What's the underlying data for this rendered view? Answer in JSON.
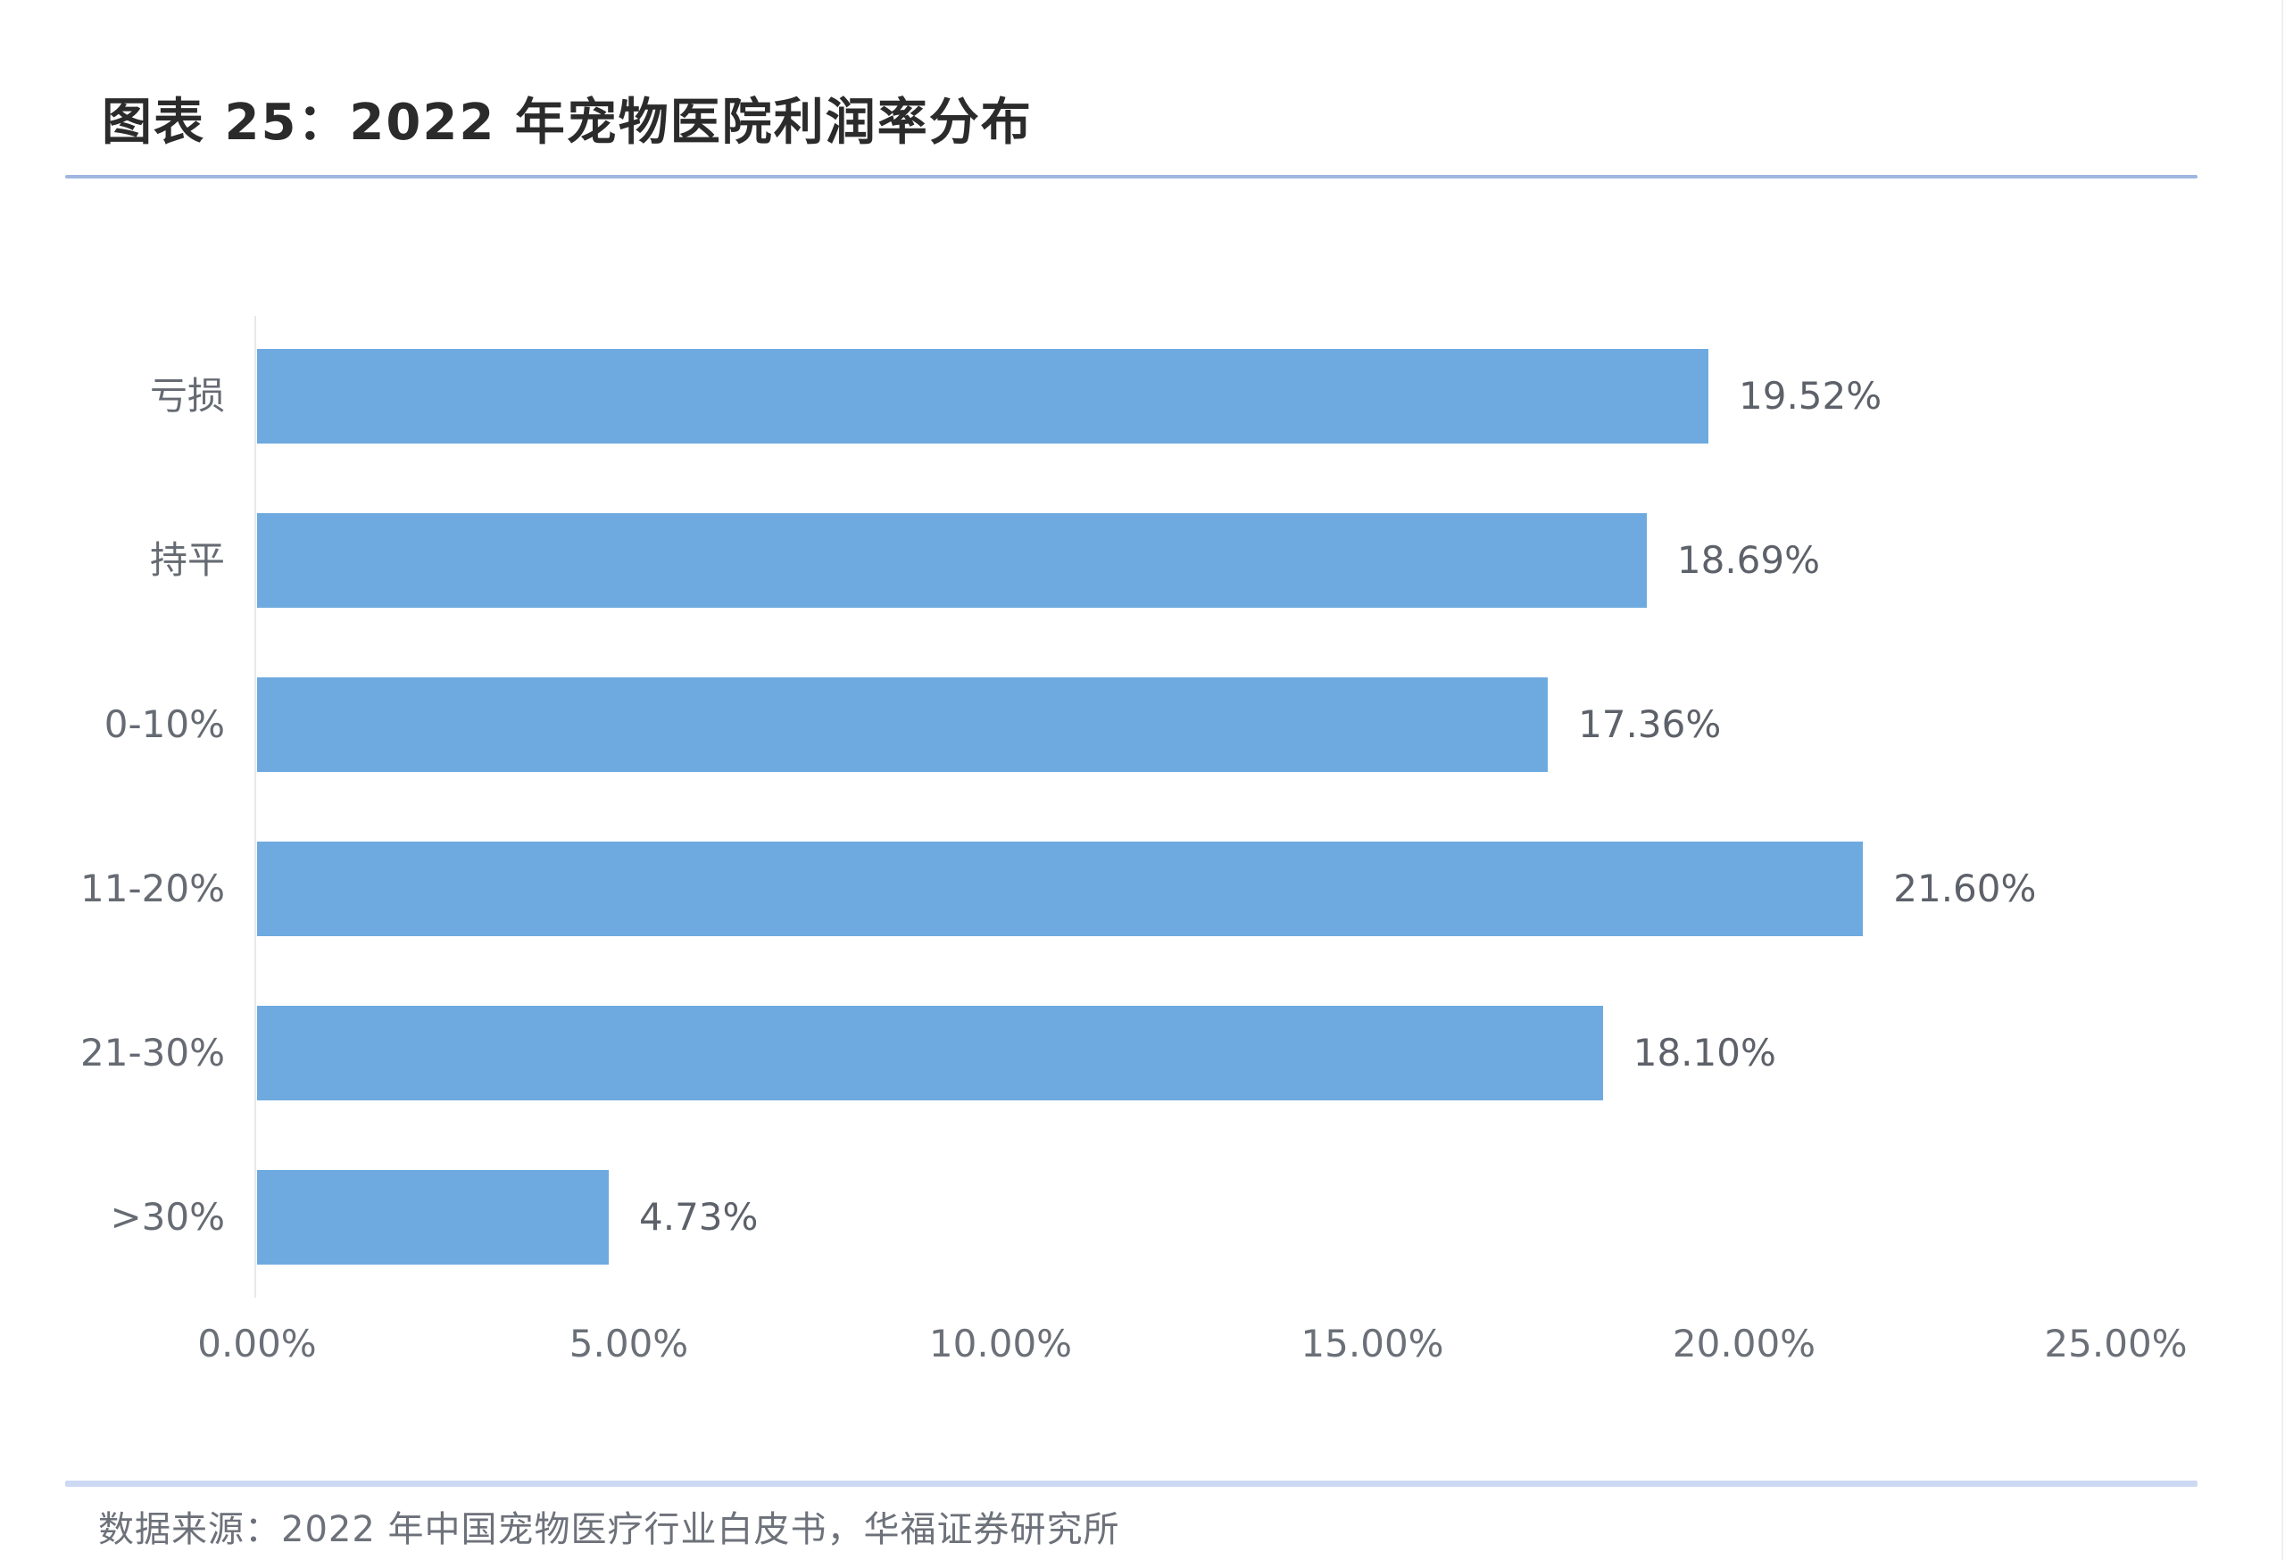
{
  "header": {
    "title": "图表 25：2022 年宠物医院利润率分布"
  },
  "footer": {
    "source": "数据来源：2022 年中国宠物医疗行业白皮书，华福证券研究所"
  },
  "colors": {
    "bar": "#6eaadf",
    "title_rule": "#9fb6e0",
    "source_rule": "#cdd9f3"
  },
  "chart_data": {
    "type": "bar",
    "orientation": "horizontal",
    "title": "图表 25：2022 年宠物医院利润率分布",
    "xlabel": "",
    "ylabel": "",
    "categories": [
      "亏损",
      "持平",
      "0-10%",
      "11-20%",
      "21-30%",
      ">30%"
    ],
    "values": [
      19.52,
      18.69,
      17.36,
      21.6,
      18.1,
      4.73
    ],
    "value_labels": [
      "19.52%",
      "18.69%",
      "17.36%",
      "21.60%",
      "18.10%",
      "4.73%"
    ],
    "xlim": [
      0,
      25
    ],
    "x_ticks": [
      0,
      5,
      10,
      15,
      20,
      25
    ],
    "x_tick_labels": [
      "0.00%",
      "5.00%",
      "10.00%",
      "15.00%",
      "20.00%",
      "25.00%"
    ],
    "grid": false,
    "legend": null,
    "source": "数据来源：2022 年中国宠物医疗行业白皮书，华福证券研究所"
  }
}
